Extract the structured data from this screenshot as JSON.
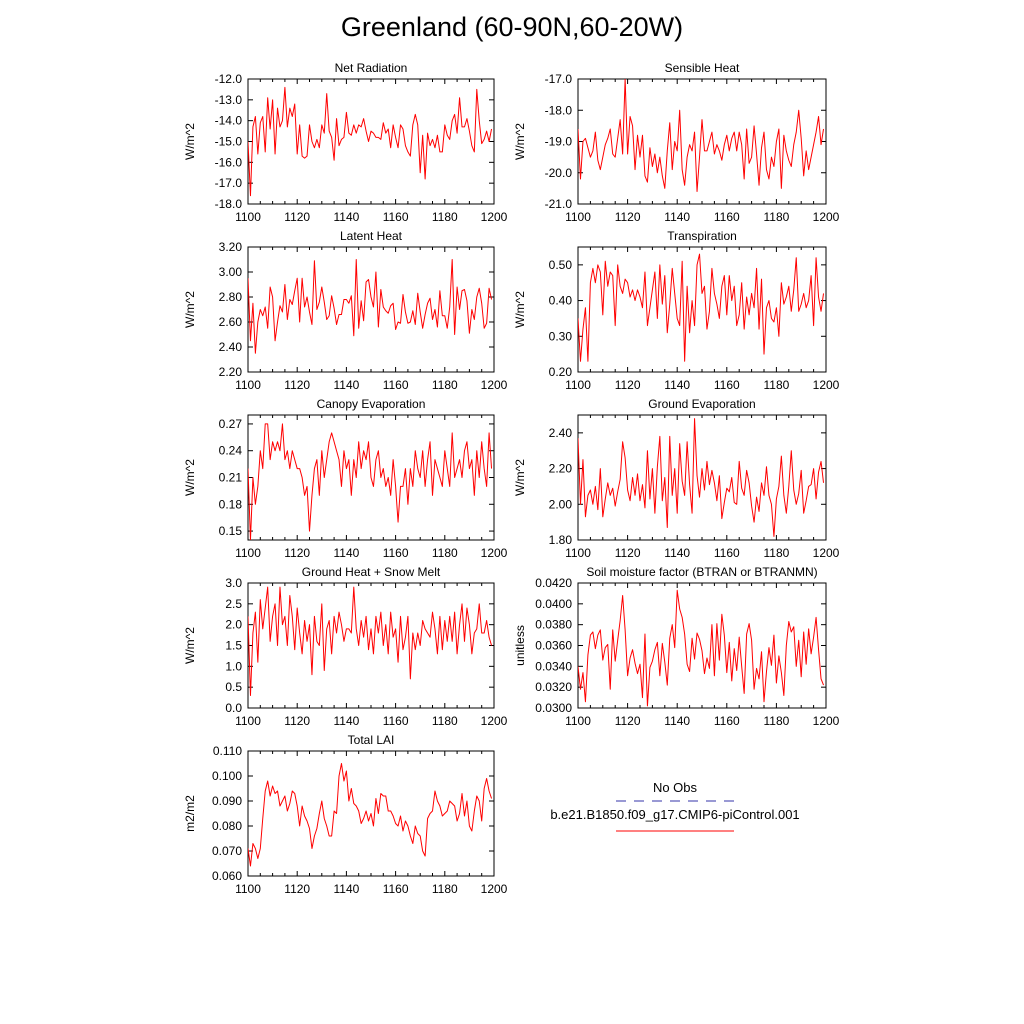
{
  "title": "Greenland (60-90N,60-20W)",
  "legend": {
    "obs_label": "No Obs",
    "obs_color": "#3333aa",
    "case_label": "b.e21.B1850.f09_g17.CMIP6-piControl.001",
    "case_color": "#ff0000"
  },
  "line_color": "#ff0000",
  "chart_data": [
    {
      "type": "line",
      "title": "Net Radiation",
      "ylabel": "W/m^2",
      "xlim": [
        1100,
        1200
      ],
      "ylim": [
        -18.0,
        -12.0
      ],
      "xticks": [
        1100,
        1120,
        1140,
        1160,
        1180,
        1200
      ],
      "yticks": [
        "-18.0",
        "-17.0",
        "-16.0",
        "-15.0",
        "-14.0",
        "-13.0",
        "-12.0"
      ],
      "x_start": 1100,
      "values": [
        -15.0,
        -17.6,
        -14.3,
        -13.8,
        -15.6,
        -14.1,
        -13.8,
        -15.5,
        -12.9,
        -14.4,
        -13.0,
        -15.6,
        -13.4,
        -14.3,
        -14.0,
        -12.4,
        -14.3,
        -13.4,
        -13.8,
        -13.2,
        -15.6,
        -14.2,
        -15.7,
        -15.8,
        -15.7,
        -14.2,
        -15.0,
        -15.3,
        -14.9,
        -15.3,
        -14.2,
        -14.6,
        -12.7,
        -14.5,
        -14.8,
        -15.9,
        -13.9,
        -15.2,
        -14.9,
        -14.8,
        -13.6,
        -14.6,
        -14.7,
        -14.2,
        -14.6,
        -14.2,
        -14.3,
        -13.9,
        -14.5,
        -15.0,
        -14.5,
        -14.6,
        -14.8,
        -14.8,
        -14.9,
        -14.1,
        -14.6,
        -14.4,
        -15.3,
        -14.2,
        -14.8,
        -15.3,
        -14.2,
        -14.4,
        -15.2,
        -15.5,
        -15.7,
        -14.2,
        -13.7,
        -14.2,
        -16.5,
        -14.7,
        -16.8,
        -14.6,
        -15.2,
        -14.9,
        -15.3,
        -14.7,
        -15.5,
        -15.5,
        -14.2,
        -14.7,
        -14.9,
        -14.0,
        -13.7,
        -14.6,
        -12.9,
        -14.3,
        -14.3,
        -13.9,
        -14.5,
        -15.2,
        -15.5,
        -12.5,
        -14.0,
        -15.1,
        -14.9,
        -14.5,
        -15.0,
        -14.4
      ]
    },
    {
      "type": "line",
      "title": "Sensible Heat",
      "ylabel": "W/m^2",
      "xlim": [
        1100,
        1200
      ],
      "ylim": [
        -21.0,
        -17.0
      ],
      "xticks": [
        1100,
        1120,
        1140,
        1160,
        1180,
        1200
      ],
      "yticks": [
        "-21.0",
        "-20.0",
        "-19.0",
        "-18.0",
        "-17.0"
      ],
      "x_start": 1100,
      "values": [
        -18.6,
        -20.2,
        -19.0,
        -18.9,
        -19.2,
        -19.5,
        -19.3,
        -18.7,
        -19.6,
        -19.9,
        -19.5,
        -19.1,
        -18.9,
        -18.6,
        -19.4,
        -19.5,
        -18.9,
        -18.3,
        -19.4,
        -17.0,
        -19.4,
        -18.2,
        -18.5,
        -19.9,
        -18.8,
        -19.5,
        -18.8,
        -20.1,
        -20.3,
        -19.2,
        -19.8,
        -19.4,
        -20.0,
        -19.5,
        -20.1,
        -20.5,
        -19.3,
        -18.4,
        -19.9,
        -19.0,
        -19.3,
        -18.0,
        -19.9,
        -20.4,
        -19.5,
        -19.1,
        -19.3,
        -18.7,
        -20.6,
        -19.5,
        -18.3,
        -19.3,
        -19.3,
        -19.0,
        -18.7,
        -19.4,
        -19.1,
        -19.3,
        -19.6,
        -19.1,
        -18.8,
        -19.3,
        -18.9,
        -18.7,
        -19.3,
        -18.7,
        -19.1,
        -20.2,
        -18.6,
        -19.7,
        -19.5,
        -18.5,
        -19.4,
        -20.4,
        -19.2,
        -18.7,
        -19.9,
        -20.2,
        -19.5,
        -19.8,
        -19.0,
        -18.6,
        -20.5,
        -18.8,
        -19.3,
        -19.6,
        -19.8,
        -19.1,
        -18.7,
        -18.0,
        -18.9,
        -20.1,
        -19.3,
        -19.9,
        -19.5,
        -19.1,
        -18.7,
        -18.2,
        -19.1,
        -18.6
      ]
    },
    {
      "type": "line",
      "title": "Latent Heat",
      "ylabel": "W/m^2",
      "xlim": [
        1100,
        1200
      ],
      "ylim": [
        2.2,
        3.2
      ],
      "xticks": [
        1100,
        1120,
        1140,
        1160,
        1180,
        1200
      ],
      "yticks": [
        "2.20",
        "2.40",
        "2.60",
        "2.80",
        "3.00",
        "3.20"
      ],
      "x_start": 1100,
      "values": [
        2.95,
        2.45,
        2.75,
        2.35,
        2.6,
        2.7,
        2.65,
        2.72,
        2.55,
        2.88,
        2.8,
        2.45,
        2.6,
        2.73,
        2.68,
        2.9,
        2.62,
        2.78,
        2.74,
        2.85,
        2.95,
        2.6,
        2.95,
        2.72,
        2.8,
        2.68,
        2.58,
        3.09,
        2.7,
        2.76,
        2.88,
        2.76,
        2.62,
        2.65,
        2.81,
        2.71,
        2.58,
        2.66,
        2.66,
        2.78,
        2.78,
        2.75,
        2.81,
        2.49,
        3.1,
        2.55,
        2.77,
        2.61,
        2.92,
        2.94,
        2.8,
        2.72,
        3.0,
        2.56,
        2.86,
        2.72,
        2.69,
        2.67,
        2.73,
        2.75,
        2.54,
        2.6,
        2.59,
        2.82,
        2.68,
        2.59,
        2.6,
        2.69,
        2.58,
        2.83,
        2.68,
        2.55,
        2.66,
        2.75,
        2.79,
        2.62,
        2.7,
        2.56,
        2.85,
        2.65,
        2.65,
        2.55,
        2.72,
        3.1,
        2.5,
        2.88,
        2.7,
        2.85,
        2.86,
        2.77,
        2.51,
        2.7,
        2.62,
        2.8,
        2.87,
        2.75,
        2.55,
        2.59,
        2.87,
        2.78
      ]
    },
    {
      "type": "line",
      "title": "Transpiration",
      "ylabel": "W/m^2",
      "xlim": [
        1100,
        1200
      ],
      "ylim": [
        0.2,
        0.55
      ],
      "xticks": [
        1100,
        1120,
        1140,
        1160,
        1180,
        1200
      ],
      "yticks": [
        "0.20",
        "0.30",
        "0.40",
        "0.50"
      ],
      "x_start": 1100,
      "values": [
        0.35,
        0.23,
        0.32,
        0.38,
        0.23,
        0.45,
        0.49,
        0.45,
        0.5,
        0.48,
        0.36,
        0.51,
        0.44,
        0.48,
        0.47,
        0.33,
        0.5,
        0.44,
        0.42,
        0.46,
        0.45,
        0.41,
        0.43,
        0.4,
        0.43,
        0.41,
        0.38,
        0.48,
        0.33,
        0.38,
        0.43,
        0.48,
        0.35,
        0.5,
        0.39,
        0.47,
        0.31,
        0.39,
        0.49,
        0.42,
        0.35,
        0.33,
        0.51,
        0.23,
        0.44,
        0.31,
        0.4,
        0.33,
        0.5,
        0.53,
        0.42,
        0.44,
        0.32,
        0.37,
        0.49,
        0.42,
        0.39,
        0.35,
        0.44,
        0.47,
        0.36,
        0.47,
        0.4,
        0.44,
        0.33,
        0.36,
        0.45,
        0.32,
        0.41,
        0.36,
        0.42,
        0.38,
        0.49,
        0.32,
        0.46,
        0.25,
        0.38,
        0.4,
        0.35,
        0.34,
        0.38,
        0.3,
        0.45,
        0.39,
        0.41,
        0.44,
        0.37,
        0.43,
        0.52,
        0.37,
        0.39,
        0.42,
        0.38,
        0.4,
        0.47,
        0.33,
        0.52,
        0.41,
        0.37,
        0.42
      ]
    },
    {
      "type": "line",
      "title": "Canopy Evaporation",
      "ylabel": "W/m^2",
      "xlim": [
        1100,
        1200
      ],
      "ylim": [
        0.14,
        0.28
      ],
      "xticks": [
        1100,
        1120,
        1140,
        1160,
        1180,
        1200
      ],
      "yticks": [
        "0.15",
        "0.18",
        "0.21",
        "0.24",
        "0.27"
      ],
      "x_start": 1100,
      "values": [
        0.22,
        0.14,
        0.21,
        0.18,
        0.2,
        0.24,
        0.22,
        0.27,
        0.27,
        0.23,
        0.25,
        0.24,
        0.25,
        0.24,
        0.27,
        0.23,
        0.24,
        0.22,
        0.24,
        0.23,
        0.22,
        0.22,
        0.21,
        0.19,
        0.2,
        0.15,
        0.19,
        0.22,
        0.23,
        0.19,
        0.24,
        0.21,
        0.23,
        0.25,
        0.26,
        0.25,
        0.24,
        0.23,
        0.2,
        0.24,
        0.22,
        0.23,
        0.19,
        0.23,
        0.21,
        0.25,
        0.22,
        0.24,
        0.23,
        0.25,
        0.21,
        0.2,
        0.23,
        0.24,
        0.21,
        0.22,
        0.2,
        0.21,
        0.19,
        0.23,
        0.2,
        0.16,
        0.2,
        0.2,
        0.22,
        0.18,
        0.22,
        0.2,
        0.24,
        0.22,
        0.21,
        0.24,
        0.2,
        0.23,
        0.25,
        0.19,
        0.23,
        0.22,
        0.21,
        0.2,
        0.24,
        0.22,
        0.2,
        0.26,
        0.21,
        0.22,
        0.23,
        0.21,
        0.24,
        0.25,
        0.22,
        0.23,
        0.19,
        0.24,
        0.21,
        0.25,
        0.22,
        0.2,
        0.26,
        0.22
      ]
    },
    {
      "type": "line",
      "title": "Ground Evaporation",
      "ylabel": "W/m^2",
      "xlim": [
        1100,
        1200
      ],
      "ylim": [
        1.8,
        2.5
      ],
      "xticks": [
        1100,
        1120,
        1140,
        1160,
        1180,
        1200
      ],
      "yticks": [
        "1.80",
        "2.00",
        "2.20",
        "2.40"
      ],
      "x_start": 1100,
      "values": [
        2.37,
        2.0,
        2.25,
        1.93,
        2.05,
        2.08,
        2.0,
        2.1,
        1.97,
        2.2,
        1.93,
        2.03,
        2.12,
        2.05,
        2.09,
        1.99,
        2.07,
        2.14,
        2.35,
        2.26,
        2.08,
        2.02,
        2.15,
        2.05,
        2.17,
        2.02,
        2.11,
        1.98,
        2.3,
        2.03,
        2.2,
        1.95,
        2.21,
        2.38,
        2.02,
        2.15,
        1.87,
        2.38,
        2.05,
        2.2,
        1.95,
        2.34,
        2.13,
        2.05,
        2.35,
        2.11,
        1.95,
        2.48,
        2.16,
        2.04,
        2.2,
        2.08,
        2.24,
        2.11,
        2.19,
        2.12,
        2.02,
        2.16,
        1.92,
        2.01,
        2.09,
        2.07,
        2.15,
        2.01,
        2.0,
        2.24,
        2.09,
        2.05,
        2.19,
        2.12,
        1.99,
        1.9,
        2.04,
        1.96,
        2.12,
        2.05,
        2.21,
        2.05,
        2.0,
        1.82,
        2.03,
        2.1,
        2.27,
        2.05,
        1.95,
        2.1,
        2.3,
        2.08,
        2.0,
        2.06,
        2.19,
        1.95,
        2.02,
        2.1,
        2.11,
        2.2,
        2.03,
        2.18,
        2.24,
        2.12
      ]
    },
    {
      "type": "line",
      "title": "Ground Heat + Snow Melt",
      "ylabel": "W/m^2",
      "xlim": [
        1100,
        1200
      ],
      "ylim": [
        0.0,
        3.0
      ],
      "xticks": [
        1100,
        1120,
        1140,
        1160,
        1180,
        1200
      ],
      "yticks": [
        "0.0",
        "0.5",
        "1.0",
        "1.5",
        "2.0",
        "2.5",
        "3.0"
      ],
      "x_start": 1100,
      "values": [
        2.2,
        0.3,
        1.8,
        2.3,
        1.1,
        2.6,
        1.9,
        2.4,
        2.9,
        1.6,
        2.2,
        2.5,
        1.5,
        2.9,
        2.0,
        2.2,
        1.5,
        2.7,
        2.2,
        1.4,
        2.4,
        1.8,
        1.3,
        2.1,
        1.6,
        2.0,
        0.8,
        2.2,
        1.6,
        1.5,
        2.5,
        0.9,
        1.9,
        2.1,
        1.3,
        2.2,
        1.8,
        2.3,
        2.0,
        1.6,
        1.9,
        1.9,
        1.8,
        2.9,
        1.9,
        1.5,
        2.1,
        1.7,
        2.2,
        1.4,
        1.9,
        1.3,
        2.2,
        1.8,
        2.3,
        1.5,
        2.0,
        1.3,
        2.3,
        1.7,
        1.9,
        1.1,
        2.2,
        1.4,
        1.7,
        2.2,
        0.7,
        1.8,
        1.4,
        1.8,
        1.5,
        2.1,
        1.9,
        1.8,
        1.7,
        2.3,
        1.9,
        1.3,
        2.2,
        1.4,
        2.1,
        1.6,
        2.2,
        1.6,
        2.3,
        1.3,
        2.0,
        2.5,
        1.6,
        2.4,
        2.0,
        1.3,
        1.8,
        1.9,
        2.5,
        1.8,
        1.8,
        2.1,
        1.7,
        1.5
      ]
    },
    {
      "type": "line",
      "title": "Soil moisture factor (BTRAN or BTRANMN)",
      "ylabel": "unitless",
      "xlim": [
        1100,
        1200
      ],
      "ylim": [
        0.03,
        0.042
      ],
      "xticks": [
        1100,
        1120,
        1140,
        1160,
        1180,
        1200
      ],
      "yticks": [
        "0.0300",
        "0.0320",
        "0.0340",
        "0.0360",
        "0.0380",
        "0.0400",
        "0.0420"
      ],
      "x_start": 1100,
      "values": [
        0.034,
        0.0318,
        0.0334,
        0.0306,
        0.0351,
        0.037,
        0.0373,
        0.0357,
        0.037,
        0.0375,
        0.0346,
        0.0358,
        0.0361,
        0.0318,
        0.0375,
        0.0345,
        0.0365,
        0.0384,
        0.0408,
        0.0375,
        0.0331,
        0.0348,
        0.0356,
        0.0343,
        0.0333,
        0.0342,
        0.031,
        0.0371,
        0.0302,
        0.0339,
        0.0345,
        0.0356,
        0.0363,
        0.0331,
        0.0362,
        0.0344,
        0.0322,
        0.0367,
        0.038,
        0.0358,
        0.0413,
        0.0395,
        0.0387,
        0.0371,
        0.0342,
        0.0335,
        0.0367,
        0.0347,
        0.0372,
        0.0366,
        0.0355,
        0.0333,
        0.0348,
        0.0338,
        0.038,
        0.0331,
        0.0381,
        0.0346,
        0.039,
        0.037,
        0.0334,
        0.0363,
        0.0326,
        0.0357,
        0.0336,
        0.0368,
        0.034,
        0.0314,
        0.0371,
        0.0381,
        0.0365,
        0.0318,
        0.0338,
        0.0328,
        0.0354,
        0.0306,
        0.0335,
        0.0358,
        0.0341,
        0.037,
        0.0324,
        0.035,
        0.0334,
        0.0312,
        0.036,
        0.0383,
        0.0373,
        0.0378,
        0.034,
        0.0365,
        0.033,
        0.0373,
        0.0342,
        0.0376,
        0.0352,
        0.0368,
        0.0387,
        0.0356,
        0.0328,
        0.0322
      ]
    },
    {
      "type": "line",
      "title": "Total LAI",
      "ylabel": "m2/m2",
      "xlim": [
        1100,
        1200
      ],
      "ylim": [
        0.06,
        0.11
      ],
      "xticks": [
        1100,
        1120,
        1140,
        1160,
        1180,
        1200
      ],
      "yticks": [
        "0.060",
        "0.070",
        "0.080",
        "0.090",
        "0.100",
        "0.110"
      ],
      "x_start": 1100,
      "values": [
        0.071,
        0.064,
        0.073,
        0.071,
        0.067,
        0.071,
        0.083,
        0.094,
        0.098,
        0.092,
        0.096,
        0.093,
        0.094,
        0.088,
        0.09,
        0.092,
        0.086,
        0.089,
        0.094,
        0.093,
        0.088,
        0.08,
        0.088,
        0.084,
        0.082,
        0.079,
        0.071,
        0.076,
        0.079,
        0.085,
        0.09,
        0.083,
        0.08,
        0.076,
        0.076,
        0.086,
        0.085,
        0.1,
        0.105,
        0.098,
        0.102,
        0.09,
        0.095,
        0.089,
        0.088,
        0.086,
        0.081,
        0.083,
        0.086,
        0.082,
        0.085,
        0.08,
        0.091,
        0.085,
        0.093,
        0.092,
        0.092,
        0.086,
        0.086,
        0.084,
        0.081,
        0.08,
        0.084,
        0.078,
        0.082,
        0.08,
        0.076,
        0.073,
        0.08,
        0.077,
        0.076,
        0.07,
        0.068,
        0.083,
        0.085,
        0.086,
        0.094,
        0.09,
        0.088,
        0.084,
        0.085,
        0.086,
        0.09,
        0.089,
        0.088,
        0.082,
        0.085,
        0.093,
        0.084,
        0.09,
        0.08,
        0.078,
        0.086,
        0.092,
        0.09,
        0.082,
        0.095,
        0.099,
        0.094,
        0.091
      ]
    }
  ]
}
